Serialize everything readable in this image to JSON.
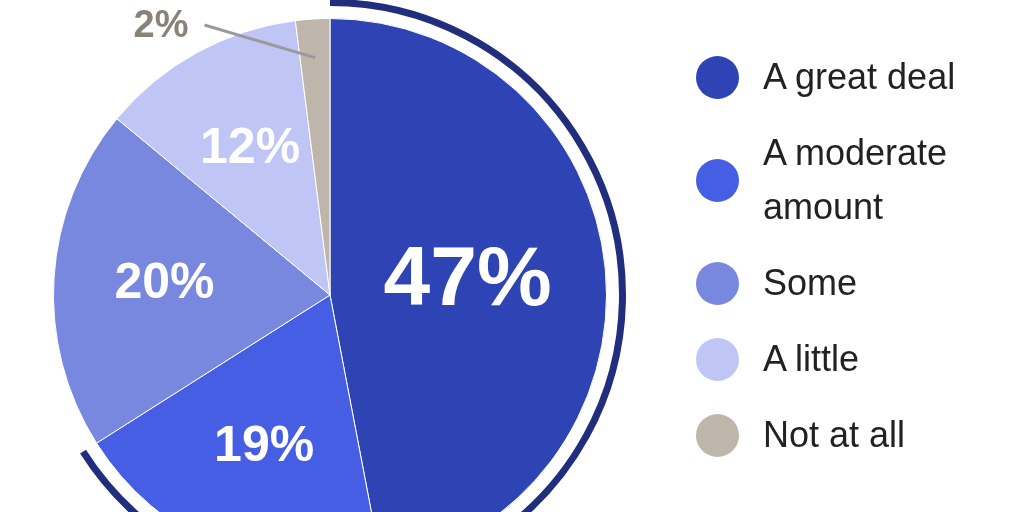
{
  "chart_data": {
    "type": "pie",
    "categories": [
      "A great deal",
      "A moderate amount",
      "Some",
      "A little",
      "Not at all"
    ],
    "values": [
      47,
      19,
      20,
      12,
      2
    ],
    "colors": [
      "#2f44b4",
      "#465ee3",
      "#7888df",
      "#bfc6f6",
      "#bfb6ab"
    ],
    "value_labels": [
      "47%",
      "19%",
      "20%",
      "12%",
      "2%"
    ],
    "legend": "right"
  }
}
